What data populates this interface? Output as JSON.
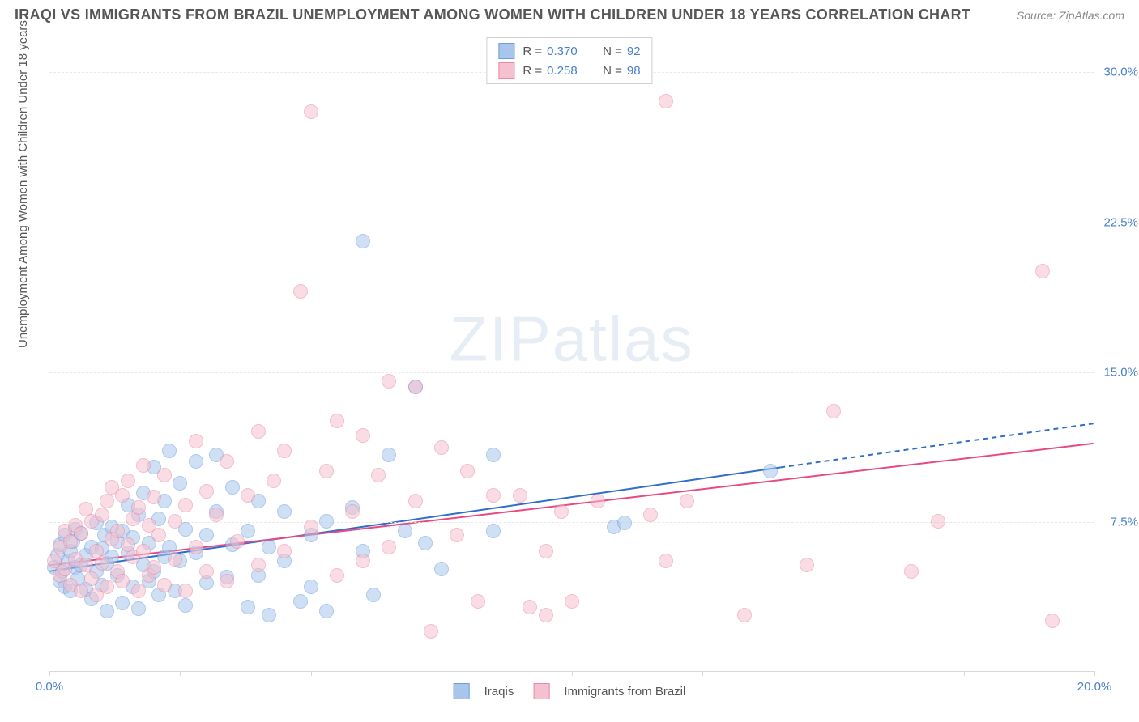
{
  "title": "IRAQI VS IMMIGRANTS FROM BRAZIL UNEMPLOYMENT AMONG WOMEN WITH CHILDREN UNDER 18 YEARS CORRELATION CHART",
  "source": "Source: ZipAtlas.com",
  "ylabel": "Unemployment Among Women with Children Under 18 years",
  "watermark": "ZIPatlas",
  "chart": {
    "type": "scatter",
    "background_color": "#ffffff",
    "grid_color": "#e8e8e8",
    "axis_color": "#d9d9d9",
    "tick_label_color": "#4a7fc9",
    "tick_fontsize": 15,
    "ylim": [
      0,
      32
    ],
    "xlim": [
      0,
      20
    ],
    "yticks": [
      {
        "v": 7.5,
        "label": "7.5%"
      },
      {
        "v": 15.0,
        "label": "15.0%"
      },
      {
        "v": 22.5,
        "label": "22.5%"
      },
      {
        "v": 30.0,
        "label": "30.0%"
      }
    ],
    "xticks": [
      {
        "v": 0,
        "label": "0.0%"
      },
      {
        "v": 2.5
      },
      {
        "v": 5.0
      },
      {
        "v": 7.5
      },
      {
        "v": 10.0
      },
      {
        "v": 12.5
      },
      {
        "v": 15.0
      },
      {
        "v": 17.5
      },
      {
        "v": 20,
        "label": "20.0%"
      }
    ],
    "marker_radius": 9,
    "marker_opacity": 0.55,
    "trend_width": 2,
    "series": [
      {
        "name": "Iraqis",
        "color_fill": "#a8c6ec",
        "color_stroke": "#6d9edd",
        "trend_color": "#2e6ec9",
        "R": "0.370",
        "N": "92",
        "trend": {
          "x1": 0,
          "y1": 5.0,
          "x2": 14.0,
          "y2": 10.2,
          "ext_x2": 20,
          "ext_y2": 12.4
        },
        "points": [
          [
            0.1,
            5.2
          ],
          [
            0.15,
            5.8
          ],
          [
            0.2,
            4.5
          ],
          [
            0.2,
            6.3
          ],
          [
            0.25,
            5.0
          ],
          [
            0.3,
            6.8
          ],
          [
            0.3,
            4.2
          ],
          [
            0.35,
            5.5
          ],
          [
            0.4,
            6.0
          ],
          [
            0.4,
            4.0
          ],
          [
            0.45,
            6.5
          ],
          [
            0.5,
            5.2
          ],
          [
            0.5,
            7.1
          ],
          [
            0.55,
            4.6
          ],
          [
            0.6,
            6.9
          ],
          [
            0.6,
            5.3
          ],
          [
            0.7,
            5.8
          ],
          [
            0.7,
            4.1
          ],
          [
            0.8,
            6.2
          ],
          [
            0.8,
            3.6
          ],
          [
            0.9,
            7.4
          ],
          [
            0.9,
            5.0
          ],
          [
            1.0,
            6.1
          ],
          [
            1.0,
            4.3
          ],
          [
            1.05,
            6.8
          ],
          [
            1.1,
            5.4
          ],
          [
            1.1,
            3.0
          ],
          [
            1.2,
            7.2
          ],
          [
            1.2,
            5.7
          ],
          [
            1.3,
            4.8
          ],
          [
            1.3,
            6.5
          ],
          [
            1.4,
            3.4
          ],
          [
            1.4,
            7.0
          ],
          [
            1.5,
            5.9
          ],
          [
            1.5,
            8.3
          ],
          [
            1.6,
            4.2
          ],
          [
            1.6,
            6.7
          ],
          [
            1.7,
            3.1
          ],
          [
            1.7,
            7.8
          ],
          [
            1.8,
            5.3
          ],
          [
            1.8,
            8.9
          ],
          [
            1.9,
            4.5
          ],
          [
            1.9,
            6.4
          ],
          [
            2.0,
            10.2
          ],
          [
            2.0,
            5.0
          ],
          [
            2.1,
            7.6
          ],
          [
            2.1,
            3.8
          ],
          [
            2.2,
            8.5
          ],
          [
            2.2,
            5.7
          ],
          [
            2.3,
            11.0
          ],
          [
            2.3,
            6.2
          ],
          [
            2.4,
            4.0
          ],
          [
            2.5,
            9.4
          ],
          [
            2.5,
            5.5
          ],
          [
            2.6,
            7.1
          ],
          [
            2.6,
            3.3
          ],
          [
            2.8,
            10.5
          ],
          [
            2.8,
            5.9
          ],
          [
            3.0,
            6.8
          ],
          [
            3.0,
            4.4
          ],
          [
            3.2,
            8.0
          ],
          [
            3.2,
            10.8
          ],
          [
            3.4,
            4.7
          ],
          [
            3.5,
            6.3
          ],
          [
            3.5,
            9.2
          ],
          [
            3.8,
            7.0
          ],
          [
            3.8,
            3.2
          ],
          [
            4.0,
            8.5
          ],
          [
            4.0,
            4.8
          ],
          [
            4.2,
            6.2
          ],
          [
            4.2,
            2.8
          ],
          [
            4.5,
            5.5
          ],
          [
            4.5,
            8.0
          ],
          [
            4.8,
            3.5
          ],
          [
            5.0,
            6.8
          ],
          [
            5.0,
            4.2
          ],
          [
            5.3,
            7.5
          ],
          [
            5.3,
            3.0
          ],
          [
            5.8,
            8.2
          ],
          [
            6.0,
            21.5
          ],
          [
            6.0,
            6.0
          ],
          [
            6.2,
            3.8
          ],
          [
            6.5,
            10.8
          ],
          [
            6.8,
            7.0
          ],
          [
            7.0,
            14.2
          ],
          [
            7.2,
            6.4
          ],
          [
            7.5,
            5.1
          ],
          [
            8.5,
            7.0
          ],
          [
            8.5,
            10.8
          ],
          [
            10.8,
            7.2
          ],
          [
            11.0,
            7.4
          ],
          [
            13.8,
            10.0
          ]
        ]
      },
      {
        "name": "Immigrants from Brazil",
        "color_fill": "#f5c0cf",
        "color_stroke": "#e98aa5",
        "trend_color": "#e74a82",
        "R": "0.258",
        "N": "98",
        "trend": {
          "x1": 0,
          "y1": 5.3,
          "x2": 20,
          "y2": 11.4
        },
        "points": [
          [
            0.1,
            5.5
          ],
          [
            0.2,
            4.8
          ],
          [
            0.2,
            6.2
          ],
          [
            0.3,
            5.1
          ],
          [
            0.3,
            7.0
          ],
          [
            0.4,
            4.3
          ],
          [
            0.4,
            6.5
          ],
          [
            0.5,
            5.6
          ],
          [
            0.5,
            7.3
          ],
          [
            0.6,
            4.0
          ],
          [
            0.6,
            6.9
          ],
          [
            0.7,
            5.3
          ],
          [
            0.7,
            8.1
          ],
          [
            0.8,
            4.6
          ],
          [
            0.8,
            7.5
          ],
          [
            0.9,
            6.0
          ],
          [
            0.9,
            3.8
          ],
          [
            1.0,
            7.8
          ],
          [
            1.0,
            5.4
          ],
          [
            1.1,
            8.5
          ],
          [
            1.1,
            4.2
          ],
          [
            1.2,
            6.6
          ],
          [
            1.2,
            9.2
          ],
          [
            1.3,
            5.0
          ],
          [
            1.3,
            7.0
          ],
          [
            1.4,
            8.8
          ],
          [
            1.4,
            4.5
          ],
          [
            1.5,
            6.3
          ],
          [
            1.5,
            9.5
          ],
          [
            1.6,
            5.7
          ],
          [
            1.6,
            7.6
          ],
          [
            1.7,
            4.0
          ],
          [
            1.7,
            8.2
          ],
          [
            1.8,
            6.0
          ],
          [
            1.8,
            10.3
          ],
          [
            1.9,
            4.8
          ],
          [
            1.9,
            7.3
          ],
          [
            2.0,
            8.7
          ],
          [
            2.0,
            5.2
          ],
          [
            2.1,
            6.8
          ],
          [
            2.2,
            9.8
          ],
          [
            2.2,
            4.3
          ],
          [
            2.4,
            7.5
          ],
          [
            2.4,
            5.6
          ],
          [
            2.6,
            8.3
          ],
          [
            2.6,
            4.0
          ],
          [
            2.8,
            11.5
          ],
          [
            2.8,
            6.2
          ],
          [
            3.0,
            9.0
          ],
          [
            3.0,
            5.0
          ],
          [
            3.2,
            7.8
          ],
          [
            3.4,
            10.5
          ],
          [
            3.4,
            4.5
          ],
          [
            3.6,
            6.5
          ],
          [
            3.8,
            8.8
          ],
          [
            4.0,
            12.0
          ],
          [
            4.0,
            5.3
          ],
          [
            4.3,
            9.5
          ],
          [
            4.5,
            11.0
          ],
          [
            4.5,
            6.0
          ],
          [
            4.8,
            19.0
          ],
          [
            5.0,
            28.0
          ],
          [
            5.0,
            7.2
          ],
          [
            5.3,
            10.0
          ],
          [
            5.5,
            4.8
          ],
          [
            5.5,
            12.5
          ],
          [
            5.8,
            8.0
          ],
          [
            6.0,
            11.8
          ],
          [
            6.0,
            5.5
          ],
          [
            6.3,
            9.8
          ],
          [
            6.5,
            14.5
          ],
          [
            6.5,
            6.2
          ],
          [
            7.0,
            14.2
          ],
          [
            7.0,
            8.5
          ],
          [
            7.3,
            2.0
          ],
          [
            7.5,
            11.2
          ],
          [
            7.8,
            6.8
          ],
          [
            8.0,
            10.0
          ],
          [
            8.2,
            3.5
          ],
          [
            8.5,
            8.8
          ],
          [
            9.0,
            8.8
          ],
          [
            9.2,
            3.2
          ],
          [
            9.5,
            6.0
          ],
          [
            9.5,
            2.8
          ],
          [
            9.8,
            8.0
          ],
          [
            10.0,
            3.5
          ],
          [
            10.5,
            8.5
          ],
          [
            11.5,
            7.8
          ],
          [
            11.8,
            28.5
          ],
          [
            11.8,
            5.5
          ],
          [
            12.2,
            8.5
          ],
          [
            13.3,
            2.8
          ],
          [
            14.5,
            5.3
          ],
          [
            15.0,
            13.0
          ],
          [
            16.5,
            5.0
          ],
          [
            17.0,
            7.5
          ],
          [
            19.0,
            20.0
          ],
          [
            19.2,
            2.5
          ]
        ]
      }
    ]
  },
  "legend_top": {
    "r_label": "R =",
    "n_label": "N ="
  },
  "legend_bottom": [
    {
      "label": "Iraqis",
      "fill": "#a8c6ec",
      "stroke": "#6d9edd"
    },
    {
      "label": "Immigrants from Brazil",
      "fill": "#f5c0cf",
      "stroke": "#e98aa5"
    }
  ]
}
